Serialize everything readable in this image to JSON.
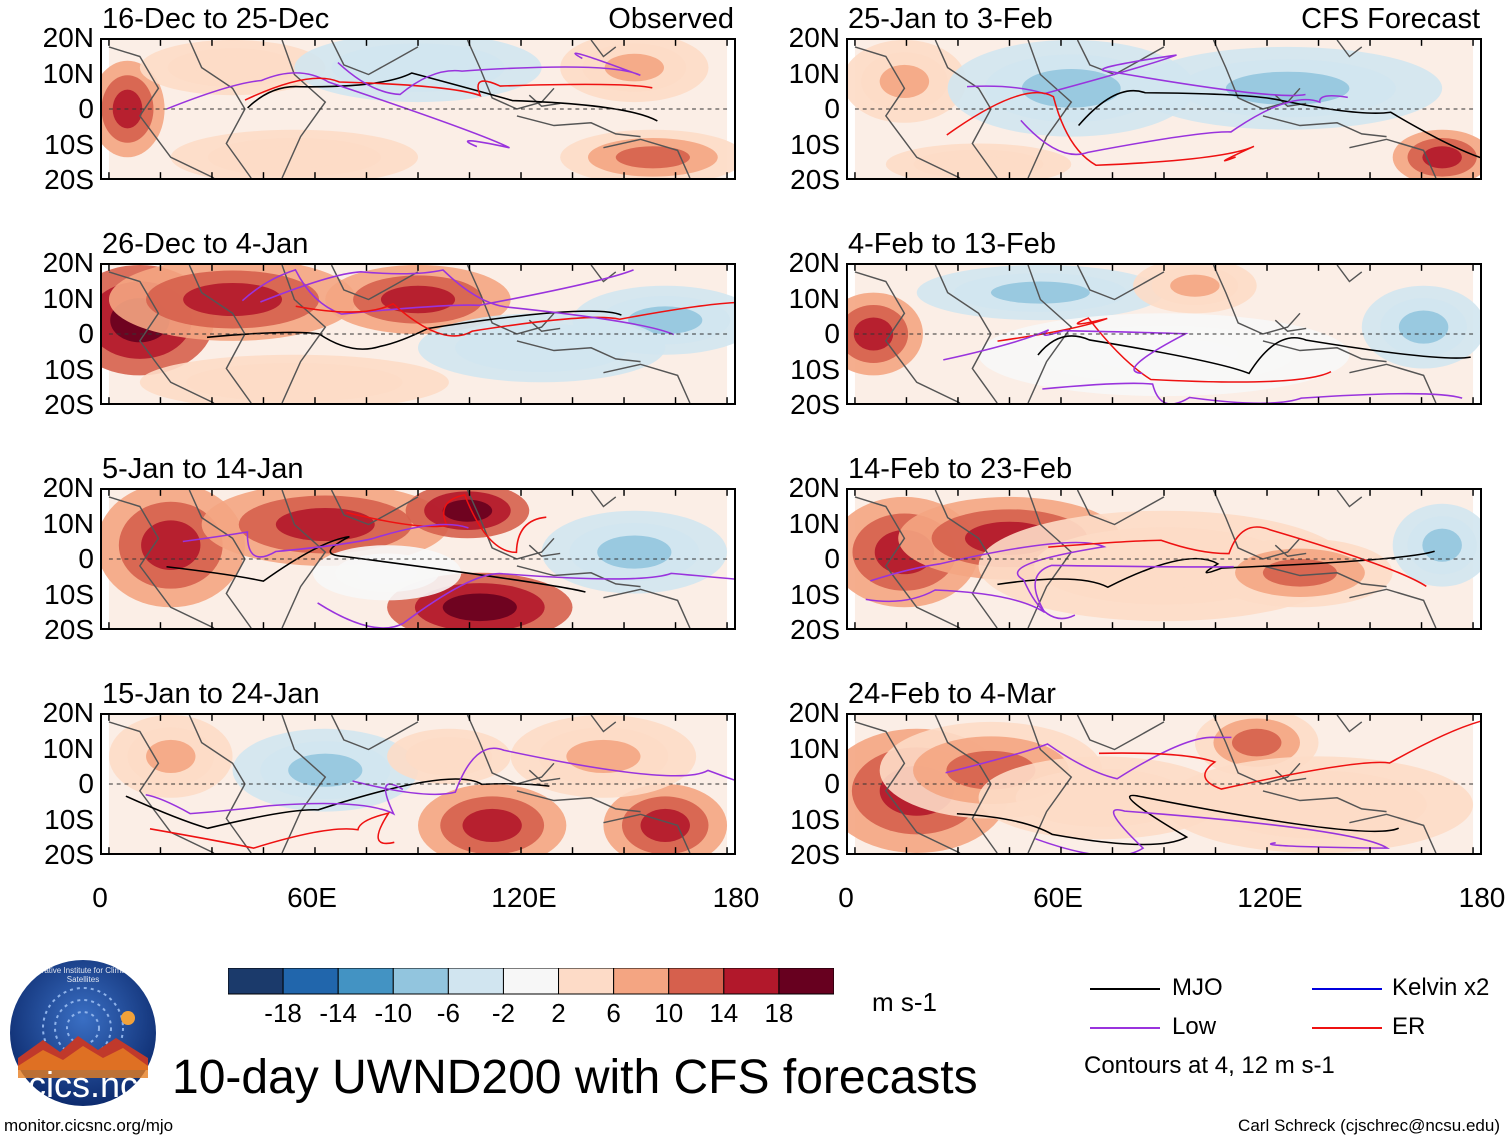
{
  "figure": {
    "title": "10-day UWND200 with CFS forecasts",
    "footer_left": "monitor.cicsnc.org/mjo",
    "footer_right": "Carl Schreck (cjschrec@ncsu.edu)",
    "logo_text": "cics.nc",
    "logo_ring_text": "Cooperative Institute for Climate and Satellites"
  },
  "axes": {
    "lat_labels": [
      "20N",
      "10N",
      "0",
      "10S",
      "20S"
    ],
    "lon_labels": [
      "0",
      "60E",
      "120E",
      "180"
    ]
  },
  "columns": {
    "left_label": "Observed",
    "right_label": "CFS Forecast"
  },
  "panels": [
    {
      "title": "16-Dec to 25-Dec",
      "col": 0,
      "row": 0,
      "label": "Observed"
    },
    {
      "title": "26-Dec to 4-Jan",
      "col": 0,
      "row": 1
    },
    {
      "title": "5-Jan to 14-Jan",
      "col": 0,
      "row": 2
    },
    {
      "title": "15-Jan to 24-Jan",
      "col": 0,
      "row": 3
    },
    {
      "title": "25-Jan to 3-Feb",
      "col": 1,
      "row": 0,
      "label": "CFS Forecast"
    },
    {
      "title": "4-Feb to 13-Feb",
      "col": 1,
      "row": 1
    },
    {
      "title": "14-Feb to 23-Feb",
      "col": 1,
      "row": 2
    },
    {
      "title": "24-Feb to 4-Mar",
      "col": 1,
      "row": 3
    }
  ],
  "colorbar": {
    "units": "m s-1",
    "tick_labels": [
      "-18",
      "-14",
      "-10",
      "-6",
      "-2",
      "2",
      "6",
      "10",
      "14",
      "18"
    ],
    "colors": [
      "#1b3a6b",
      "#2166ac",
      "#4393c3",
      "#92c5de",
      "#d1e5f0",
      "#f7f7f7",
      "#fddbc7",
      "#f4a582",
      "#d6604d",
      "#b2182b",
      "#67001f"
    ]
  },
  "legend": {
    "items": [
      {
        "name": "MJO",
        "color": "#000000"
      },
      {
        "name": "Kelvin x2",
        "color": "#0000dd"
      },
      {
        "name": "Low",
        "color": "#9933dd"
      },
      {
        "name": "ER",
        "color": "#ee1111"
      }
    ],
    "note": "Contours at 4, 12 m s-1"
  }
}
